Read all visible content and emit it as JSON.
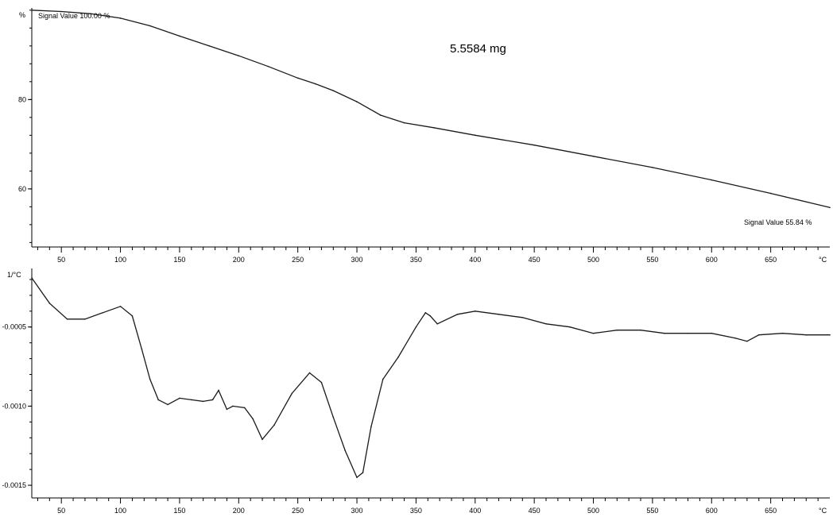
{
  "chart_data": [
    {
      "type": "line",
      "panel": "tg",
      "ylabel": "%",
      "xlabel": "°C",
      "xlim": [
        25,
        700
      ],
      "ylim": [
        47,
        100.5
      ],
      "yticks": [
        60,
        80
      ],
      "xticks": [
        50,
        100,
        150,
        200,
        250,
        300,
        350,
        400,
        450,
        500,
        550,
        600,
        650
      ],
      "annotations": {
        "start": "Signal Value   100.00 %",
        "end": "Signal Value   55.84 %",
        "mass": "5.5584 mg"
      },
      "series": [
        {
          "x": [
            25,
            50,
            75,
            100,
            125,
            150,
            175,
            200,
            225,
            250,
            265,
            280,
            300,
            320,
            340,
            365,
            400,
            450,
            500,
            550,
            600,
            650,
            700
          ],
          "y": [
            100,
            99.7,
            99.2,
            98.2,
            96.5,
            94.2,
            92.0,
            89.8,
            87.4,
            84.8,
            83.5,
            82.0,
            79.5,
            76.5,
            74.8,
            73.7,
            72.0,
            69.8,
            67.3,
            64.8,
            62.0,
            59.0,
            55.84
          ]
        }
      ]
    },
    {
      "type": "line",
      "panel": "dtg",
      "ylabel": "1/°C",
      "xlabel": "°C",
      "xlim": [
        25,
        700
      ],
      "ylim": [
        -0.00158,
        -0.00013
      ],
      "yticks": [
        -0.0005,
        -0.001,
        -0.0015
      ],
      "ytick_labels": [
        "-0.0005",
        "-0.0010",
        "-0.0015"
      ],
      "xticks": [
        50,
        100,
        150,
        200,
        250,
        300,
        350,
        400,
        450,
        500,
        550,
        600,
        650
      ],
      "series": [
        {
          "x": [
            25,
            40,
            55,
            70,
            85,
            100,
            110,
            118,
            125,
            132,
            140,
            150,
            160,
            170,
            178,
            183,
            190,
            195,
            205,
            212,
            220,
            230,
            245,
            260,
            270,
            280,
            290,
            300,
            305,
            312,
            322,
            335,
            350,
            358,
            362,
            368,
            385,
            400,
            420,
            440,
            460,
            480,
            500,
            520,
            540,
            560,
            580,
            600,
            620,
            630,
            640,
            660,
            680,
            700
          ],
          "y": [
            -0.00019,
            -0.00035,
            -0.00045,
            -0.00045,
            -0.00041,
            -0.00037,
            -0.00043,
            -0.00064,
            -0.00083,
            -0.00096,
            -0.00099,
            -0.00095,
            -0.00096,
            -0.00097,
            -0.00096,
            -0.0009,
            -0.00102,
            -0.001,
            -0.00101,
            -0.00108,
            -0.00121,
            -0.00112,
            -0.00092,
            -0.00079,
            -0.00085,
            -0.00107,
            -0.00128,
            -0.00145,
            -0.00142,
            -0.00113,
            -0.00083,
            -0.00069,
            -0.0005,
            -0.00041,
            -0.00043,
            -0.00048,
            -0.00042,
            -0.0004,
            -0.00042,
            -0.00044,
            -0.00048,
            -0.0005,
            -0.00054,
            -0.00052,
            -0.00052,
            -0.00054,
            -0.00054,
            -0.00054,
            -0.00057,
            -0.00059,
            -0.00055,
            -0.00054,
            -0.00055,
            -0.00055
          ]
        }
      ]
    }
  ]
}
